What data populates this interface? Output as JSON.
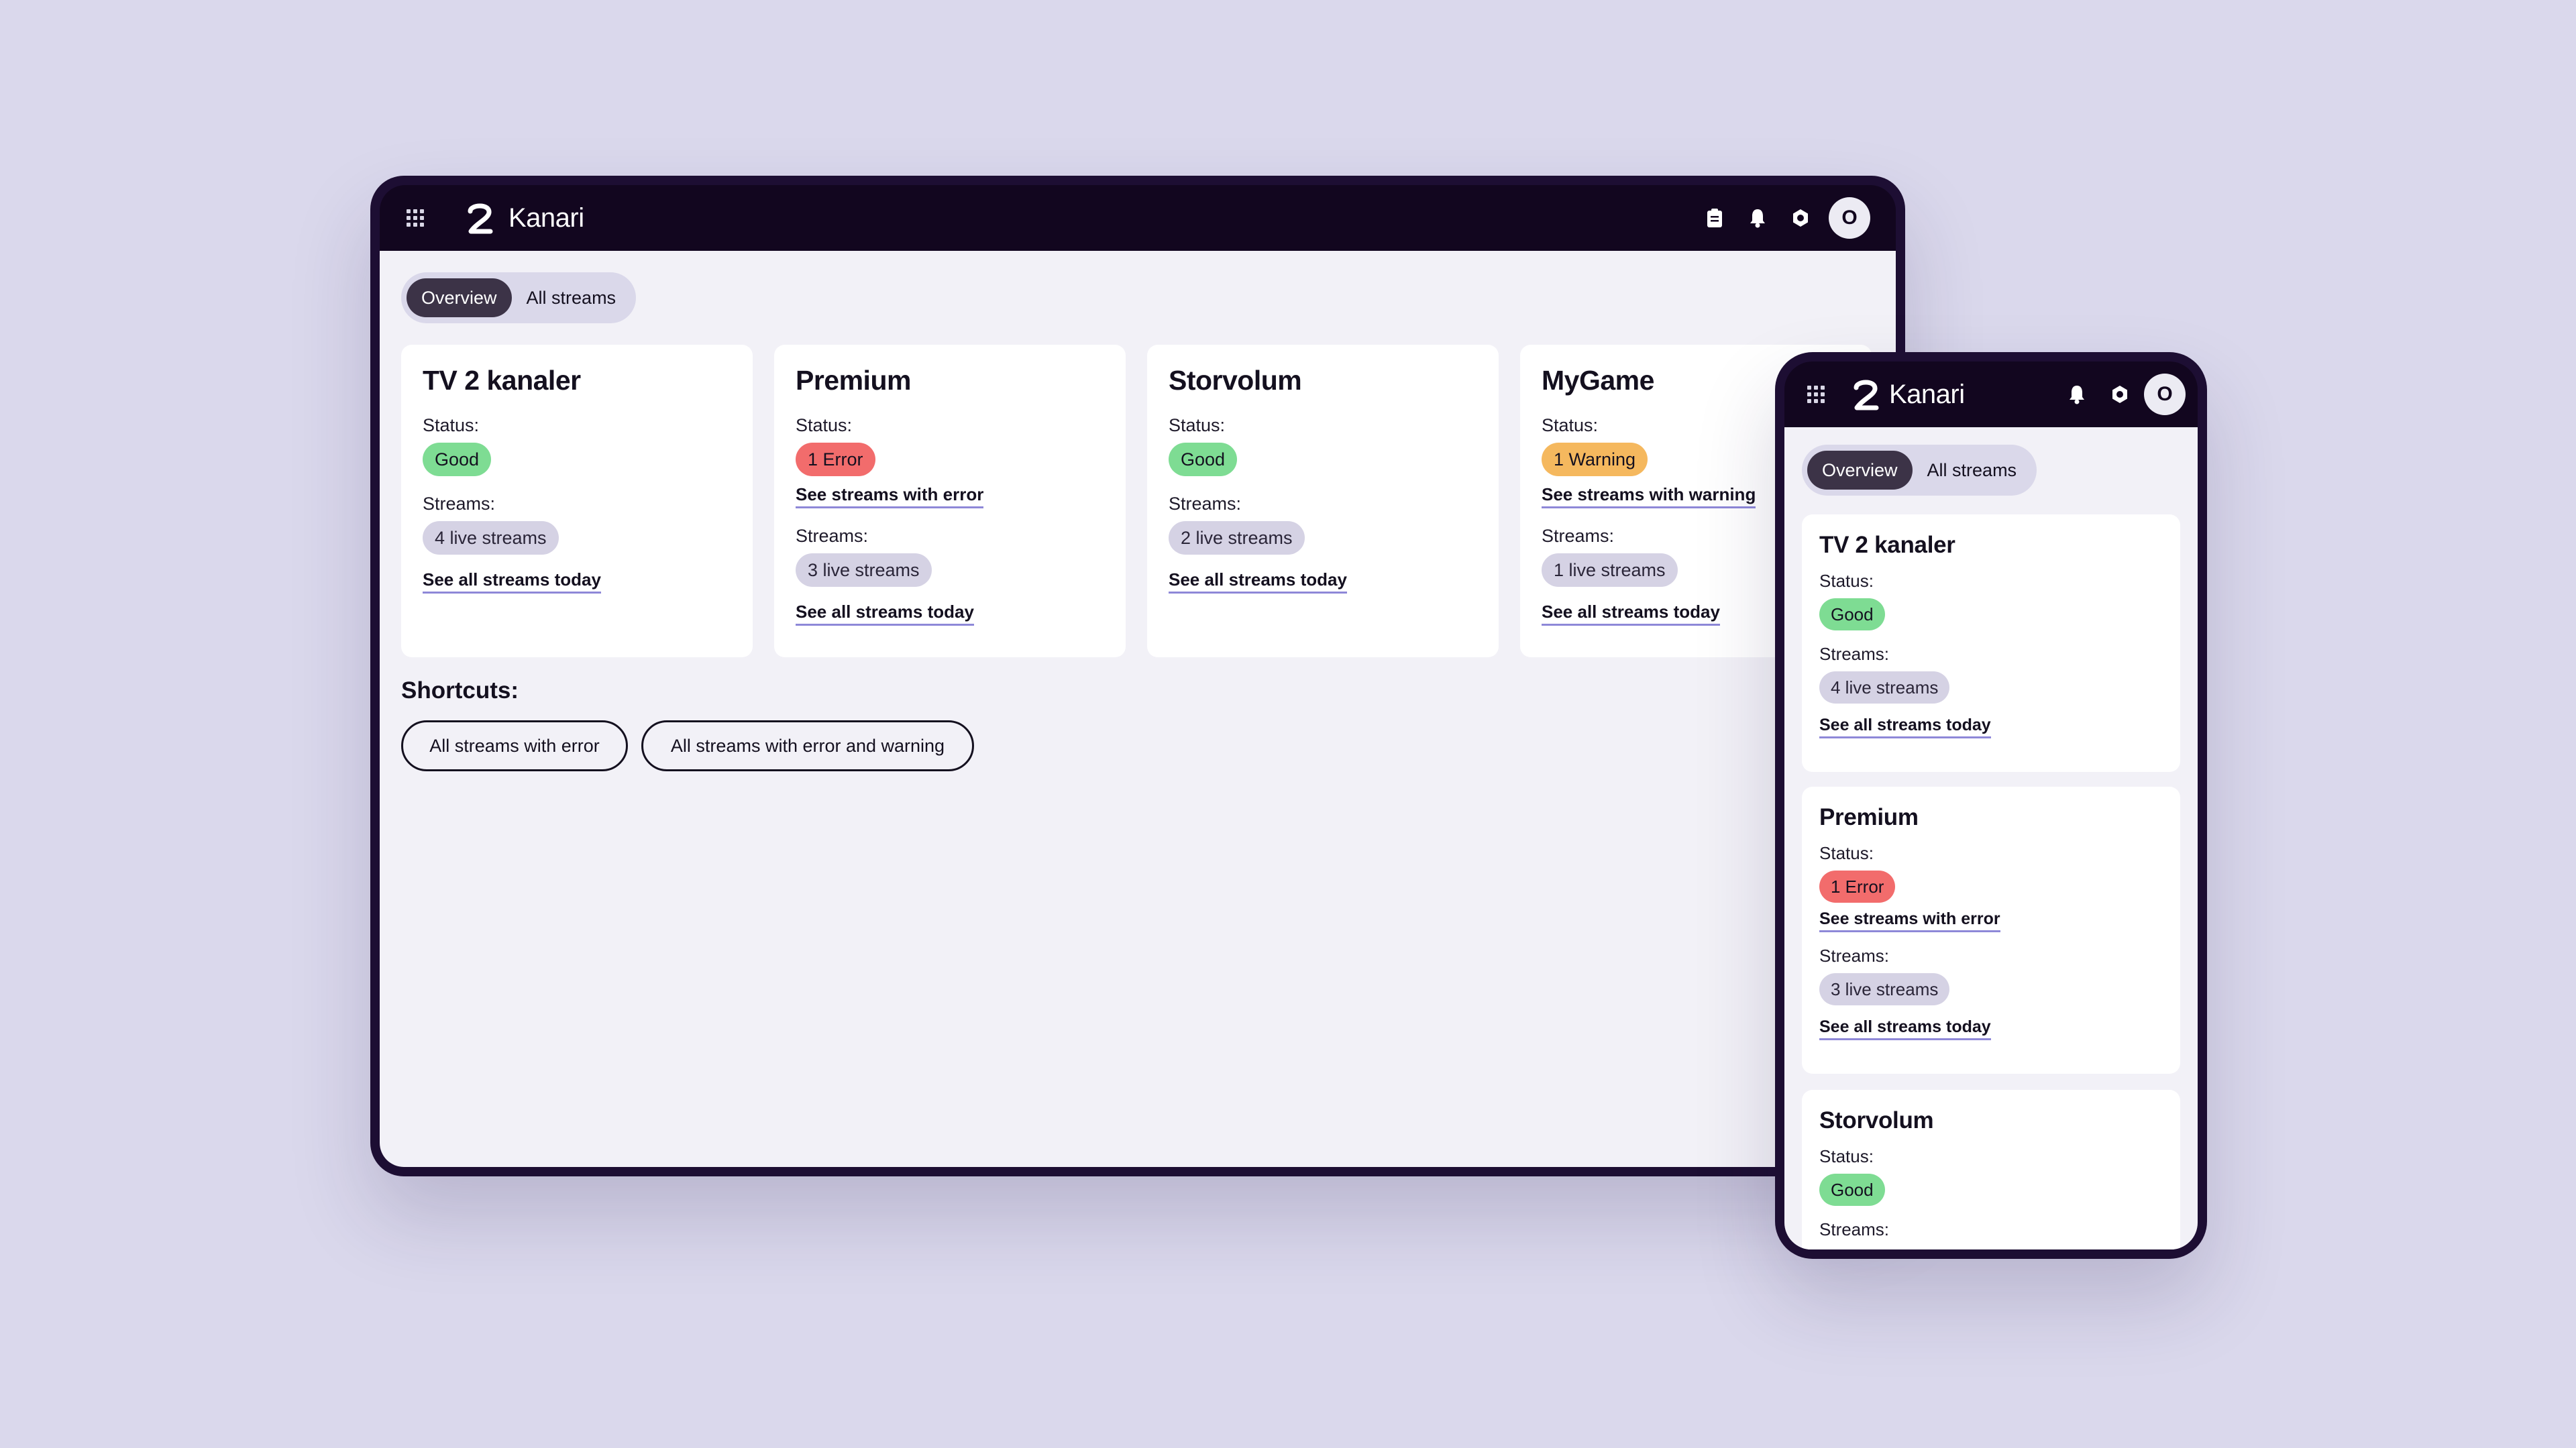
{
  "app": {
    "brand_mark": "2",
    "name": "Kanari",
    "avatar_initial": "O",
    "icons": [
      "apps-grid-icon",
      "clipboard-icon",
      "bell-icon",
      "settings-icon"
    ]
  },
  "tabs": [
    {
      "label": "Overview",
      "active": true
    },
    {
      "label": "All streams",
      "active": false
    }
  ],
  "cards": [
    {
      "title": "TV 2 kanaler",
      "status_label": "Status:",
      "status": "Good",
      "status_type": "good",
      "status_link": "",
      "streams_label": "Streams:",
      "streams": "4 live streams",
      "streams_link": "See all streams today"
    },
    {
      "title": "Premium",
      "status_label": "Status:",
      "status": "1 Error",
      "status_type": "error",
      "status_link": "See streams with error",
      "streams_label": "Streams:",
      "streams": "3 live streams",
      "streams_link": "See all streams today"
    },
    {
      "title": "Storvolum",
      "status_label": "Status:",
      "status": "Good",
      "status_type": "good",
      "status_link": "",
      "streams_label": "Streams:",
      "streams": "2 live streams",
      "streams_link": "See all streams today"
    },
    {
      "title": "MyGame",
      "status_label": "Status:",
      "status": "1 Warning",
      "status_type": "warning",
      "status_link": "See streams with warning",
      "streams_label": "Streams:",
      "streams": "1 live streams",
      "streams_link": "See all streams today"
    }
  ],
  "shortcuts": {
    "title": "Shortcuts:",
    "buttons": [
      "All streams with error",
      "All streams with error and warning"
    ]
  },
  "colors": {
    "frame": "#1d0e33",
    "good": "#7edc93",
    "error": "#f26c6c",
    "warning": "#f5b85e",
    "link_underline": "#8e88d8",
    "background": "#dad8ec"
  }
}
